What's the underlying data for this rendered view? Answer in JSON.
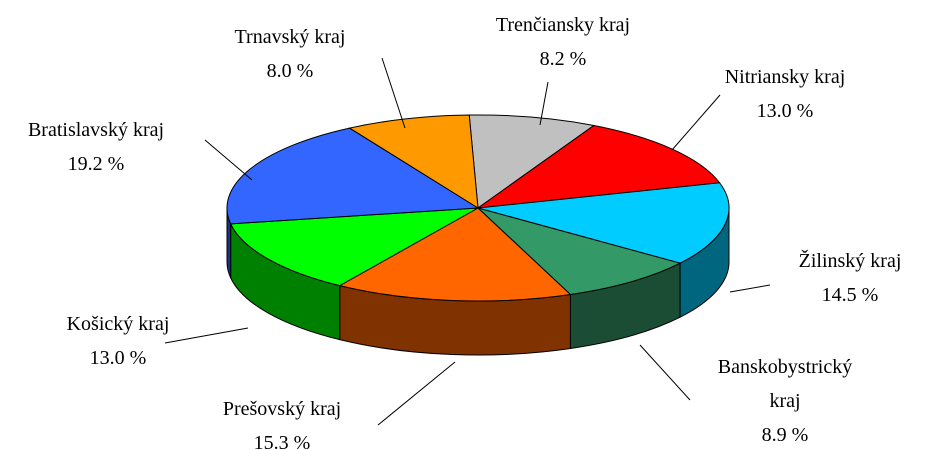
{
  "chart_data": {
    "type": "pie3d",
    "categories": [
      "Trenčiansky kraj",
      "Nitriansky kraj",
      "Žilinský kraj",
      "Banskobystrický kraj",
      "Prešovský kraj",
      "Košický kraj",
      "Bratislavský kraj",
      "Trnavský kraj"
    ],
    "values": [
      8.2,
      13.0,
      14.5,
      8.9,
      15.3,
      13.0,
      19.2,
      8.0
    ],
    "value_labels": [
      "8.2 %",
      "13.0 %",
      "14.5 %",
      "8.9 %",
      "15.3 %",
      "13.0 %",
      "19.2 %",
      "8.0 %"
    ],
    "colors": [
      "#c0c0c0",
      "#ff0000",
      "#00ccff",
      "#339966",
      "#ff6600",
      "#00ff00",
      "#3366ff",
      "#ff9900"
    ]
  }
}
